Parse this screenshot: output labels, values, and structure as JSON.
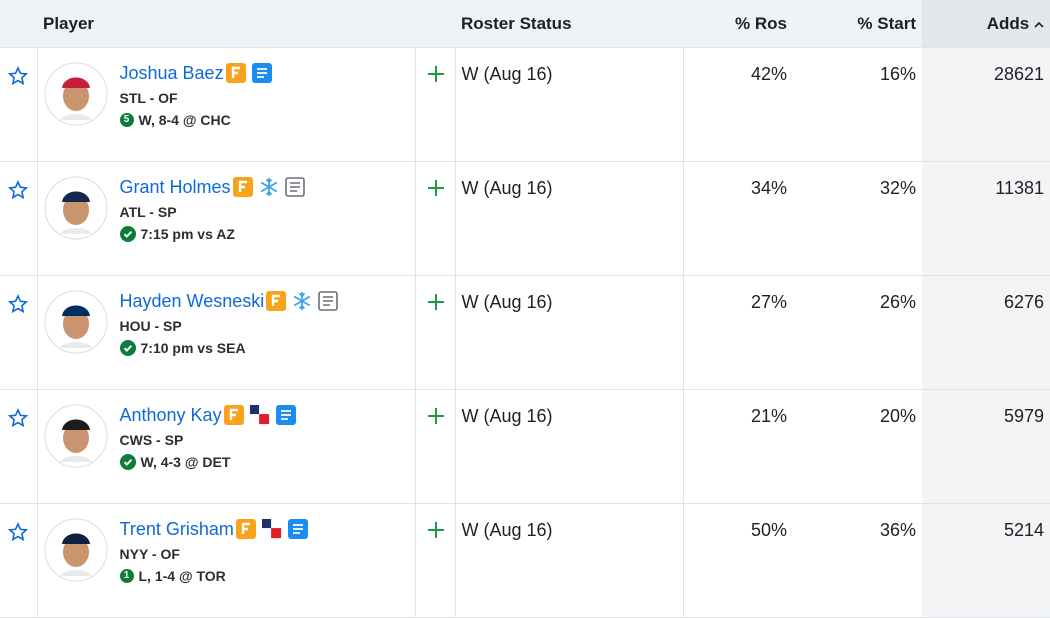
{
  "header": {
    "player": "Player",
    "roster_status": "Roster Status",
    "pct_ros": "% Ros",
    "pct_start": "% Start",
    "adds": "Adds"
  },
  "rows": [
    {
      "name": "Joshua Baez",
      "team_pos": "STL - OF",
      "game_badge": "5",
      "game": "W, 8-4 @ CHC",
      "status": "W (Aug 16)",
      "pct_ros": "42%",
      "pct_start": "16%",
      "adds": "28621"
    },
    {
      "name": "Grant Holmes",
      "team_pos": "ATL - SP",
      "game": "7:15 pm vs AZ",
      "status": "W (Aug 16)",
      "pct_ros": "34%",
      "pct_start": "32%",
      "adds": "11381"
    },
    {
      "name": "Hayden Wesneski",
      "team_pos": "HOU - SP",
      "game": "7:10 pm vs SEA",
      "status": "W (Aug 16)",
      "pct_ros": "27%",
      "pct_start": "26%",
      "adds": "6276"
    },
    {
      "name": "Anthony Kay",
      "team_pos": "CWS - SP",
      "game": "W, 4-3 @ DET",
      "status": "W (Aug 16)",
      "pct_ros": "21%",
      "pct_start": "20%",
      "adds": "5979"
    },
    {
      "name": "Trent Grisham",
      "team_pos": "NYY - OF",
      "game_badge": "1",
      "game": "L, 1-4 @ TOR",
      "status": "W (Aug 16)",
      "pct_ros": "50%",
      "pct_start": "36%",
      "adds": "5214"
    }
  ]
}
